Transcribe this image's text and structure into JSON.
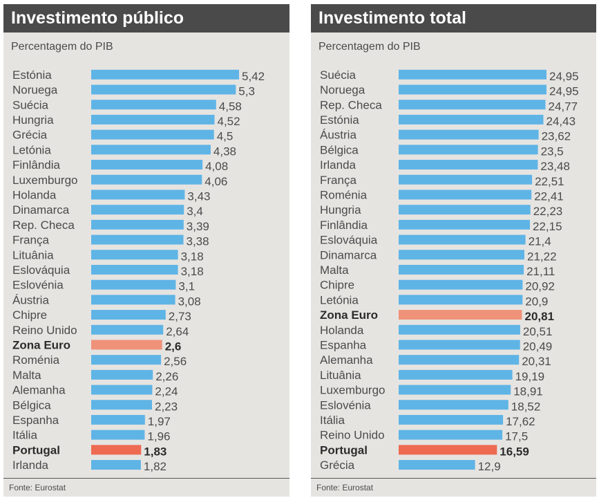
{
  "colors": {
    "bar_default": "#5fb4e6",
    "bar_euro_zone": "#f0927a",
    "bar_portugal": "#ee6a51",
    "label_text": "#4a4a4a",
    "highlight_text": "#2b2b2b"
  },
  "panels": [
    {
      "title": "Investimento público",
      "subtitle": "Percentagem do PIB",
      "footer": "Fonte: Eurostat"
    },
    {
      "title": "Investimento total",
      "subtitle": "Percentagem do PIB",
      "footer": "Fonte: Eurostat"
    }
  ],
  "chart_data": [
    {
      "type": "bar",
      "orientation": "horizontal",
      "title": "Investimento público",
      "subtitle": "Percentagem do PIB",
      "xlim": [
        0,
        5.42
      ],
      "highlight": {
        "Zona Euro": "euro_zone",
        "Portugal": "portugal"
      },
      "categories": [
        "Estónia",
        "Noruega",
        "Suécia",
        "Hungria",
        "Grécia",
        "Letónia",
        "Finlândia",
        "Luxemburgo",
        "Holanda",
        "Dinamarca",
        "Rep. Checa",
        "França",
        "Lituânia",
        "Eslováquia",
        "Eslovénia",
        "Áustria",
        "Chipre",
        "Reino Unido",
        "Zona Euro",
        "Roménia",
        "Malta",
        "Alemanha",
        "Bélgica",
        "Espanha",
        "Itália",
        "Portugal",
        "Irlanda"
      ],
      "values": [
        5.42,
        5.3,
        4.58,
        4.52,
        4.5,
        4.38,
        4.08,
        4.06,
        3.43,
        3.4,
        3.39,
        3.38,
        3.18,
        3.18,
        3.1,
        3.08,
        2.73,
        2.64,
        2.6,
        2.56,
        2.26,
        2.24,
        2.23,
        1.97,
        1.96,
        1.83,
        1.82
      ],
      "value_labels": [
        "5,42",
        "5,3",
        "4,58",
        "4,52",
        "4,5",
        "4,38",
        "4,08",
        "4,06",
        "3,43",
        "3,4",
        "3,39",
        "3,38",
        "3,18",
        "3,18",
        "3,1",
        "3,08",
        "2,73",
        "2,64",
        "2,6",
        "2,56",
        "2,26",
        "2,24",
        "2,23",
        "1,97",
        "1,96",
        "1,83",
        "1,82"
      ],
      "source": "Fonte: Eurostat"
    },
    {
      "type": "bar",
      "orientation": "horizontal",
      "title": "Investimento total",
      "subtitle": "Percentagem do PIB",
      "xlim": [
        0,
        24.95
      ],
      "highlight": {
        "Zona Euro": "euro_zone",
        "Portugal": "portugal"
      },
      "categories": [
        "Suécia",
        "Noruega",
        "Rep. Checa",
        "Estónia",
        "Áustria",
        "Bélgica",
        "Irlanda",
        "França",
        "Roménia",
        "Hungria",
        "Finlândia",
        "Eslováquia",
        "Dinamarca",
        "Malta",
        "Chipre",
        "Letónia",
        "Zona Euro",
        "Holanda",
        "Espanha",
        "Alemanha",
        "Lituânia",
        "Luxemburgo",
        "Eslovénia",
        "Itália",
        "Reino Unido",
        "Portugal",
        "Grécia"
      ],
      "values": [
        24.95,
        24.95,
        24.77,
        24.43,
        23.62,
        23.5,
        23.48,
        22.51,
        22.41,
        22.23,
        22.15,
        21.4,
        21.22,
        21.11,
        20.92,
        20.9,
        20.81,
        20.51,
        20.49,
        20.31,
        19.19,
        18.91,
        18.52,
        17.62,
        17.5,
        16.59,
        12.9
      ],
      "value_labels": [
        "24,95",
        "24,95",
        "24,77",
        "24,43",
        "23,62",
        "23,5",
        "23,48",
        "22,51",
        "22,41",
        "22,23",
        "22,15",
        "21,4",
        "21,22",
        "21,11",
        "20,92",
        "20,9",
        "20,81",
        "20,51",
        "20,49",
        "20,31",
        "19,19",
        "18,91",
        "18,52",
        "17,62",
        "17,5",
        "16,59",
        "12,9"
      ],
      "source": "Fonte: Eurostat"
    }
  ]
}
